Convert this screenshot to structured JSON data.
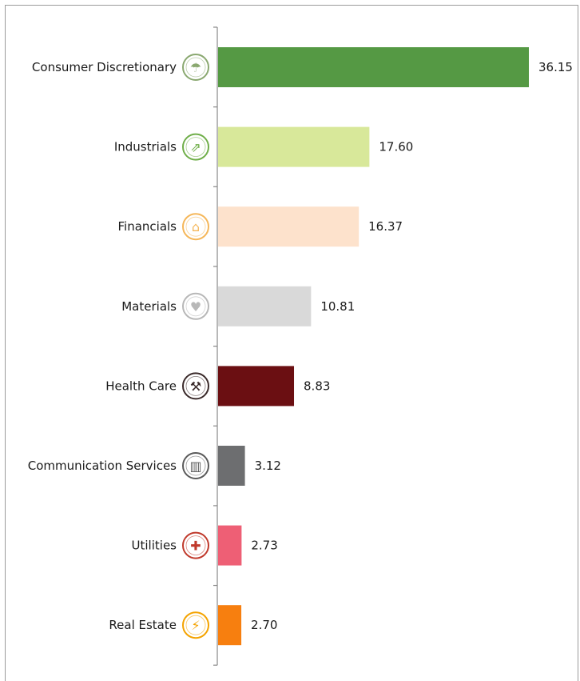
{
  "chart_data": {
    "type": "bar",
    "orientation": "horizontal",
    "categories": [
      "Consumer Discretionary",
      "Industrials",
      "Financials",
      "Materials",
      "Health Care",
      "Communication Services",
      "Utilities",
      "Real Estate"
    ],
    "values": [
      36.15,
      17.6,
      16.37,
      10.81,
      8.83,
      3.12,
      2.73,
      2.7
    ],
    "value_labels": [
      "36.15",
      "17.60",
      "16.37",
      "10.81",
      "8.83",
      "3.12",
      "2.73",
      "2.70"
    ],
    "colors": [
      "#559944",
      "#d8e89a",
      "#fde2cc",
      "#d9d9d9",
      "#6b0f12",
      "#6d6e70",
      "#ee5f75",
      "#f77f0f"
    ],
    "icons": [
      "umbrella-icon",
      "growth-hand-icon",
      "factory-icon",
      "heart-plus-icon",
      "worker-icon",
      "city-buildings-icon",
      "person-medicine-icon",
      "antenna-tower-icon"
    ],
    "icon_colors": [
      "#8aa870",
      "#6fae49",
      "#f5b75a",
      "#b8b8b8",
      "#3a2a2a",
      "#5a5a5a",
      "#c0392b",
      "#f4a300"
    ],
    "xlim": [
      0,
      40
    ],
    "grid": false,
    "legend": "none"
  }
}
